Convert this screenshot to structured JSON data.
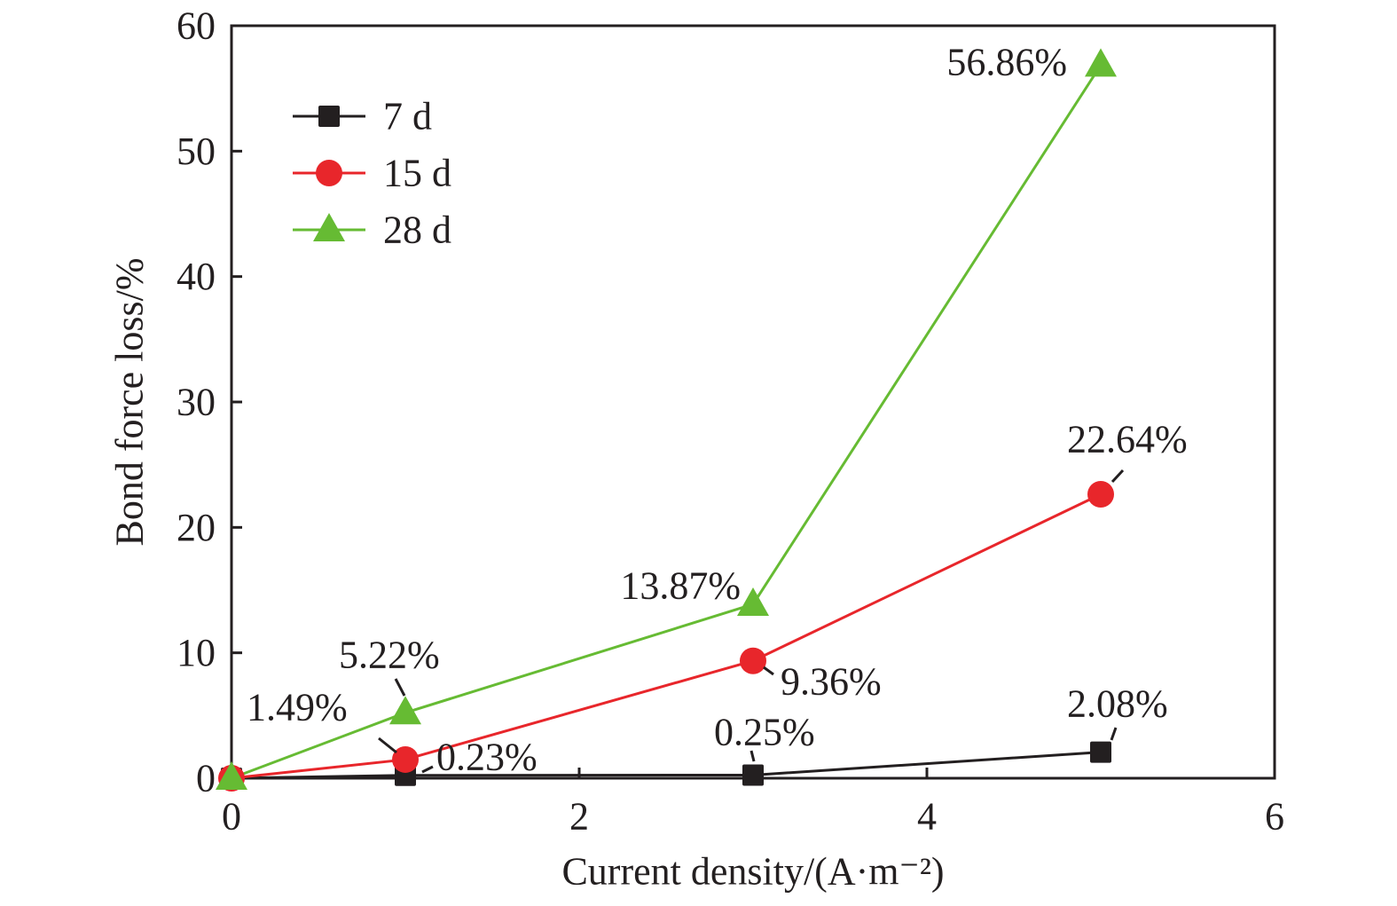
{
  "chart_data": {
    "type": "line",
    "title": "",
    "xlabel": "Current density/(A·m⁻²)",
    "ylabel": "Bond force loss/%",
    "xlim": [
      0,
      6
    ],
    "ylim": [
      0,
      60
    ],
    "xticks": [
      0,
      2,
      4,
      6
    ],
    "yticks": [
      0,
      10,
      20,
      30,
      40,
      50,
      60
    ],
    "grid": false,
    "legend_position": "top-left",
    "x": [
      0,
      1,
      3,
      5
    ],
    "series": [
      {
        "name": "7 d",
        "color": "#231f20",
        "marker": "square",
        "values": [
          0,
          0.23,
          0.25,
          2.08
        ],
        "labels": [
          "",
          "0.23%",
          "0.25%",
          "2.08%"
        ]
      },
      {
        "name": "15 d",
        "color": "#e8262b",
        "marker": "circle",
        "values": [
          0,
          1.49,
          9.36,
          22.64
        ],
        "labels": [
          "",
          "1.49%",
          "9.36%",
          "22.64%"
        ]
      },
      {
        "name": "28 d",
        "color": "#66bb33",
        "marker": "triangle",
        "values": [
          0,
          5.22,
          13.87,
          56.86
        ],
        "labels": [
          "",
          "5.22%",
          "13.87%",
          "56.86%"
        ]
      }
    ]
  }
}
